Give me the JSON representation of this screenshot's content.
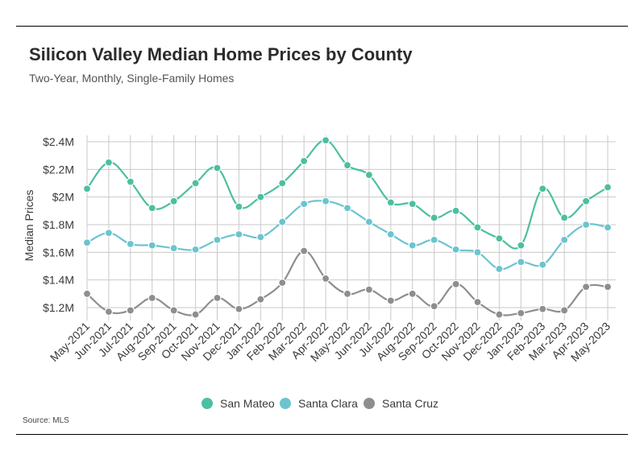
{
  "header": {
    "title": "Silicon Valley Median Home Prices by County",
    "subtitle": "Two-Year, Monthly, Single-Family Homes"
  },
  "footer": {
    "source": "Source: MLS"
  },
  "chart_data": {
    "type": "line",
    "ylabel": "Median Prices",
    "ylim": [
      1.1,
      2.45
    ],
    "yticks": [
      1.2,
      1.4,
      1.6,
      1.8,
      2.0,
      2.2,
      2.4
    ],
    "ytick_labels": [
      "$1.2M",
      "$1.4M",
      "$1.6M",
      "$1.8M",
      "$2M",
      "$2.2M",
      "$2.4M"
    ],
    "grid": true,
    "legend_position": "bottom-center",
    "x": [
      "May-2021",
      "Jun-2021",
      "Jul-2021",
      "Aug-2021",
      "Sep-2021",
      "Oct-2021",
      "Nov-2021",
      "Dec-2021",
      "Jan-2022",
      "Feb-2022",
      "Mar-2022",
      "Apr-2022",
      "May-2022",
      "Jun-2022",
      "Jul-2022",
      "Aug-2022",
      "Sep-2022",
      "Oct-2022",
      "Nov-2022",
      "Dec-2022",
      "Jan-2023",
      "Feb-2023",
      "Mar-2023",
      "Apr-2023",
      "May-2023"
    ],
    "series": [
      {
        "name": "San Mateo",
        "color": "#4dbfa0",
        "values": [
          2.06,
          2.25,
          2.11,
          1.92,
          1.97,
          2.1,
          2.21,
          1.93,
          2.0,
          2.1,
          2.26,
          2.41,
          2.23,
          2.16,
          1.96,
          1.95,
          1.85,
          1.9,
          1.78,
          1.7,
          1.65,
          2.06,
          1.85,
          1.97,
          2.07
        ]
      },
      {
        "name": "Santa Clara",
        "color": "#6cc4ce",
        "values": [
          1.67,
          1.74,
          1.66,
          1.65,
          1.63,
          1.62,
          1.69,
          1.73,
          1.71,
          1.82,
          1.95,
          1.97,
          1.92,
          1.82,
          1.73,
          1.65,
          1.69,
          1.62,
          1.6,
          1.48,
          1.53,
          1.51,
          1.69,
          1.8,
          1.78
        ]
      },
      {
        "name": "Santa Cruz",
        "color": "#8e8e8e",
        "values": [
          1.3,
          1.17,
          1.18,
          1.27,
          1.18,
          1.15,
          1.27,
          1.19,
          1.26,
          1.38,
          1.61,
          1.41,
          1.3,
          1.33,
          1.25,
          1.3,
          1.21,
          1.37,
          1.24,
          1.15,
          1.16,
          1.19,
          1.18,
          1.35,
          1.35
        ]
      }
    ]
  }
}
